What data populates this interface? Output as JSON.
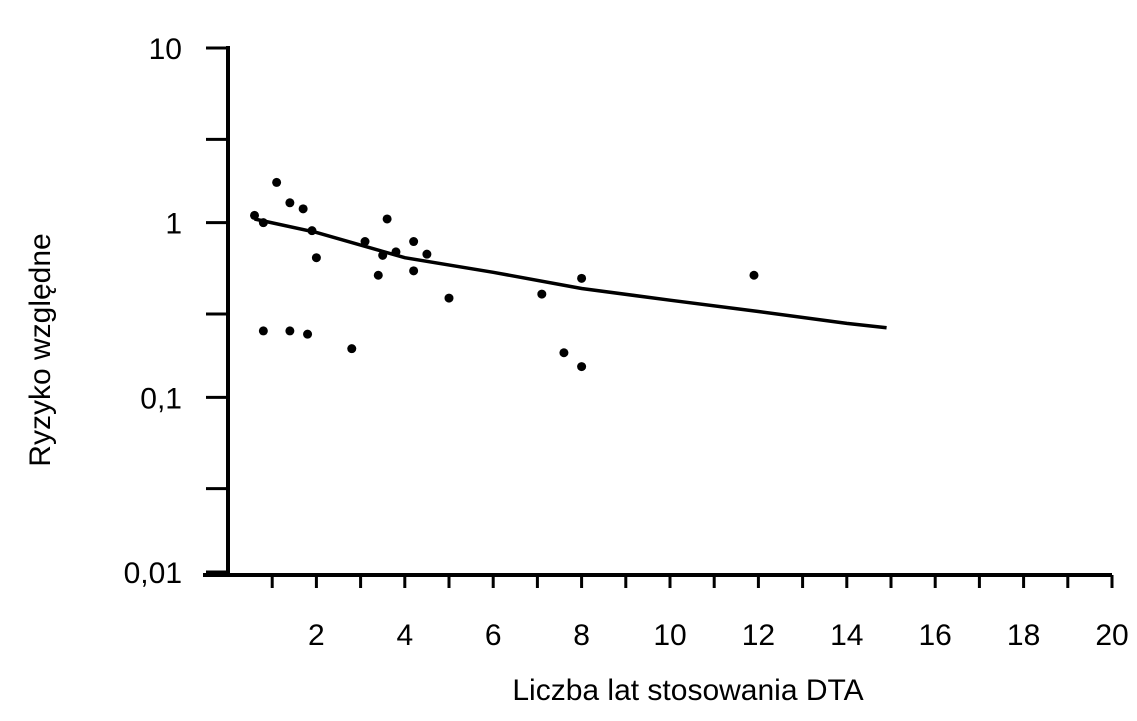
{
  "chart_data": {
    "type": "scatter",
    "xlabel": "Liczba lat stosowania DTA",
    "ylabel": "Ryzyko względne",
    "x_range": [
      0,
      20
    ],
    "y_range": [
      0.01,
      10
    ],
    "y_scale": "log",
    "grid": false,
    "x_ticks": [
      {
        "value": 2,
        "label": "2"
      },
      {
        "value": 4,
        "label": "4"
      },
      {
        "value": 6,
        "label": "6"
      },
      {
        "value": 8,
        "label": "8"
      },
      {
        "value": 10,
        "label": "10"
      },
      {
        "value": 12,
        "label": "12"
      },
      {
        "value": 14,
        "label": "14"
      },
      {
        "value": 16,
        "label": "16"
      },
      {
        "value": 18,
        "label": "18"
      },
      {
        "value": 20,
        "label": "20"
      }
    ],
    "y_ticks": [
      {
        "value": 10,
        "label": "10"
      },
      {
        "value": 1,
        "label": "1"
      },
      {
        "value": 0.1,
        "label": "0,1"
      },
      {
        "value": 0.01,
        "label": "0,01"
      }
    ],
    "y_minor_ticks": [
      3,
      0.3,
      0.03
    ],
    "points": [
      {
        "x": 0.6,
        "y": 1.1
      },
      {
        "x": 0.8,
        "y": 1.0
      },
      {
        "x": 1.1,
        "y": 1.7
      },
      {
        "x": 1.4,
        "y": 1.3
      },
      {
        "x": 1.7,
        "y": 1.2
      },
      {
        "x": 1.9,
        "y": 0.9
      },
      {
        "x": 2.0,
        "y": 0.63
      },
      {
        "x": 3.1,
        "y": 0.78
      },
      {
        "x": 3.4,
        "y": 0.5
      },
      {
        "x": 3.5,
        "y": 0.65
      },
      {
        "x": 3.6,
        "y": 1.05
      },
      {
        "x": 3.8,
        "y": 0.68
      },
      {
        "x": 4.2,
        "y": 0.78
      },
      {
        "x": 4.2,
        "y": 0.53
      },
      {
        "x": 4.5,
        "y": 0.66
      },
      {
        "x": 5.0,
        "y": 0.37
      },
      {
        "x": 7.1,
        "y": 0.39
      },
      {
        "x": 8.0,
        "y": 0.48
      },
      {
        "x": 11.9,
        "y": 0.5
      },
      {
        "x": 0.8,
        "y": 0.24
      },
      {
        "x": 1.4,
        "y": 0.24
      },
      {
        "x": 1.8,
        "y": 0.23
      },
      {
        "x": 2.8,
        "y": 0.19
      },
      {
        "x": 7.6,
        "y": 0.18
      },
      {
        "x": 8.0,
        "y": 0.15
      }
    ],
    "trend_line": [
      {
        "x": 0.6,
        "y": 1.05
      },
      {
        "x": 2,
        "y": 0.88
      },
      {
        "x": 4,
        "y": 0.63
      },
      {
        "x": 6,
        "y": 0.52
      },
      {
        "x": 8,
        "y": 0.42
      },
      {
        "x": 10,
        "y": 0.36
      },
      {
        "x": 12,
        "y": 0.31
      },
      {
        "x": 14,
        "y": 0.265
      },
      {
        "x": 14.9,
        "y": 0.25
      }
    ]
  }
}
